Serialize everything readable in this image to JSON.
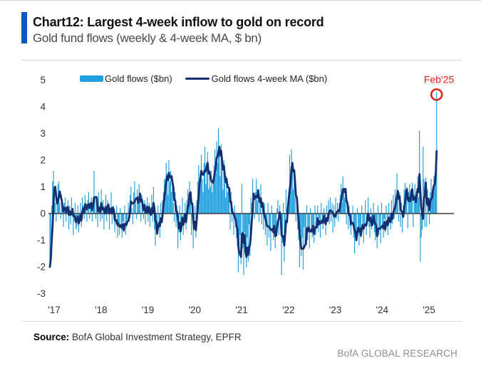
{
  "header": {
    "title": "Chart12: Largest 4-week inflow to gold on record",
    "subtitle": "Gold fund flows (weekly & 4-week MA, $ bn)",
    "accent_color": "#0B57C4"
  },
  "legend": {
    "bar_label": "Gold flows ($bn)",
    "line_label": "Gold flows 4-week MA ($bn)"
  },
  "footer": {
    "source_label": "Source:",
    "source_text": " BofA Global Investment Strategy, EPFR",
    "brand": "BofA GLOBAL RESEARCH"
  },
  "chart_data": {
    "type": "bar",
    "frequency": "weekly",
    "x_tick_labels": [
      "'17",
      "'18",
      "'19",
      "'20",
      "'21",
      "'22",
      "'23",
      "'24",
      "'25"
    ],
    "y_ticks": [
      5,
      4,
      3,
      2,
      1,
      0,
      -1,
      -2,
      -3
    ],
    "ylim": [
      -3,
      5
    ],
    "grid": false,
    "legend_position": "top",
    "annotation": {
      "text": "Feb'25",
      "color": "#E2231A",
      "target_value": 4.55
    },
    "zero_line_color": "#3d3d3d",
    "series": [
      {
        "name": "Gold flows ($bn)",
        "type": "bar",
        "color": "#1FA0DD",
        "values": [
          -2.0,
          -1.4,
          0.3,
          1.2,
          1.6,
          0.8,
          0.4,
          -0.3,
          0.6,
          1.1,
          1.2,
          0.4,
          -0.2,
          0.7,
          0.3,
          -0.5,
          0.4,
          0.6,
          -0.3,
          0.2,
          0.5,
          -0.6,
          0.3,
          -0.4,
          0.6,
          0.2,
          -0.8,
          -0.3,
          0.4,
          -0.6,
          -0.5,
          0.3,
          -0.7,
          -0.2,
          0.4,
          -0.5,
          0.6,
          0.3,
          -0.2,
          0.7,
          0.4,
          -0.3,
          0.5,
          0.8,
          -0.2,
          0.4,
          0.6,
          -0.3,
          0.5,
          1.6,
          0.6,
          -0.2,
          0.4,
          -0.5,
          0.8,
          0.2,
          -0.3,
          0.9,
          -0.2,
          0.5,
          -0.6,
          0.3,
          0.7,
          -0.3,
          0.5,
          0.4,
          -0.6,
          0.2,
          0.8,
          -0.4,
          0.3,
          -0.2,
          -0.7,
          -0.4,
          0.3,
          -0.9,
          -0.5,
          -0.8,
          0.2,
          -0.6,
          -0.9,
          -0.3,
          -0.7,
          0.3,
          -0.8,
          -0.5,
          -0.2,
          0.4,
          -0.3,
          0.7,
          1.0,
          0.2,
          -0.4,
          0.8,
          1.2,
          0.5,
          -0.2,
          0.9,
          0.4,
          1.1,
          0.6,
          -0.3,
          0.7,
          0.3,
          -0.2,
          0.5,
          -0.4,
          0.3,
          0.6,
          -0.3,
          0.4,
          -0.5,
          0.2,
          0.7,
          -0.3,
          1.0,
          -0.6,
          -1.2,
          -0.4,
          -0.8,
          0.3,
          -0.5,
          -0.9,
          0.4,
          -0.3,
          0.5,
          0.8,
          1.3,
          0.9,
          1.9,
          1.5,
          0.7,
          2.0,
          1.2,
          1.6,
          0.8,
          1.1,
          0.4,
          -0.3,
          0.8,
          -0.5,
          0.3,
          -1.3,
          -0.7,
          0.3,
          -1.0,
          -0.5,
          0.6,
          -0.8,
          -0.3,
          0.4,
          -0.6,
          0.5,
          0.9,
          0.4,
          1.2,
          0.7,
          -0.8,
          0.4,
          -1.3,
          -0.6,
          0.3,
          -0.9,
          0.5,
          1.2,
          1.8,
          0.9,
          1.5,
          2.2,
          1.3,
          0.8,
          1.9,
          2.5,
          1.1,
          1.7,
          2.3,
          0.9,
          1.4,
          1.0,
          1.6,
          0.8,
          1.2,
          1.8,
          2.4,
          1.5,
          2.7,
          1.9,
          3.2,
          2.2,
          1.4,
          2.6,
          1.7,
          0.9,
          2.0,
          1.2,
          0.6,
          1.4,
          0.8,
          1.1,
          0.5,
          -0.6,
          0.8,
          -0.3,
          0.2,
          -0.8,
          0.3,
          -0.5,
          -0.9,
          -1.2,
          -2.2,
          -1.6,
          -0.8,
          -1.9,
          1.1,
          -1.3,
          -2.3,
          -0.7,
          -1.5,
          -2.0,
          -0.9,
          -1.8,
          -0.4,
          -1.6,
          0.6,
          0.4,
          1.3,
          0.7,
          -0.2,
          0.8,
          1.3,
          0.5,
          0.9,
          -0.3,
          0.6,
          1.1,
          -0.4,
          0.3,
          -0.6,
          0.4,
          -0.8,
          -0.3,
          -1.2,
          0.4,
          -0.9,
          -0.5,
          -1.4,
          0.3,
          -0.7,
          -1.0,
          -0.4,
          -1.3,
          -0.6,
          0.2,
          0.5,
          -0.8,
          0.3,
          -0.4,
          -2.3,
          -1.1,
          0.4,
          -1.8,
          -0.6,
          0.9,
          0.2,
          0.4,
          0.8,
          2.2,
          1.2,
          2.4,
          1.8,
          0.9,
          1.4,
          0.6,
          -0.3,
          0.7,
          -0.6,
          -1.0,
          -2.0,
          -0.7,
          -1.6,
          -0.9,
          -2.1,
          -0.5,
          -1.2,
          -0.8,
          0.3,
          -1.0,
          -0.6,
          -1.3,
          0.2,
          -0.7,
          -0.9,
          -0.4,
          -1.1,
          0.3,
          -0.8,
          -0.5,
          0.3,
          -0.7,
          -0.2,
          -0.9,
          0.4,
          -0.3,
          -0.6,
          0.2,
          -0.4,
          -0.8,
          0.3,
          -0.2,
          0.5,
          -0.4,
          0.6,
          -0.3,
          0.4,
          -0.7,
          0.3,
          -0.5,
          0.6,
          -0.2,
          0.4,
          -0.3,
          0.4,
          0.7,
          1.1,
          0.4,
          1.4,
          0.8,
          0.6,
          0.9,
          -0.4,
          0.5,
          -0.6,
          0.3,
          -0.5,
          -0.8,
          -0.4,
          0.3,
          -0.9,
          -1.5,
          -0.6,
          -1.0,
          0.2,
          -0.7,
          -1.2,
          -0.5,
          -0.9,
          0.3,
          -0.6,
          -1.1,
          -0.4,
          0.5,
          -0.8,
          -0.3,
          0.6,
          -0.5,
          -0.9,
          0.2,
          -0.6,
          -0.3,
          0.4,
          -0.7,
          -1.0,
          -0.4,
          -1.3,
          0.3,
          -0.8,
          -0.5,
          -1.1,
          0.4,
          -0.6,
          -0.9,
          -0.2,
          -0.7,
          0.3,
          -0.5,
          -0.8,
          0.4,
          -0.3,
          -0.6,
          0.5,
          -0.4,
          0.7,
          -0.2,
          0.9,
          0.4,
          1.5,
          0.6,
          -0.3,
          0.8,
          -0.5,
          0.4,
          -0.7,
          0.3,
          0.9,
          1.15,
          0.6,
          1.0,
          -0.55,
          0.8,
          1.1,
          0.5,
          0.9,
          1.15,
          -0.5,
          0.7,
          1.1,
          0.4,
          0.8,
          1.4,
          0.6,
          3.1,
          -1.8,
          -0.9,
          -0.6,
          2.5,
          1.3,
          -0.5,
          1.35,
          -0.5,
          0.9,
          0.5,
          -0.4,
          0.8,
          1.3,
          0.6,
          0.9,
          1.4,
          1.5,
          1.9,
          4.55
        ]
      },
      {
        "name": "Gold flows 4-week MA ($bn)",
        "type": "line",
        "color": "#142F70",
        "derived_from": "4-week trailing mean of Gold flows ($bn)"
      }
    ]
  }
}
